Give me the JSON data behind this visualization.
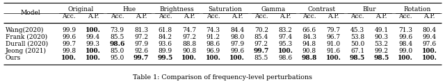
{
  "caption": "Table 1: Comparison of frequency-level perturbations",
  "header_groups": [
    "Model",
    "Original",
    "Hue",
    "Brightness",
    "Saturation",
    "Gamma",
    "Contrast",
    "Blur",
    "Rotation"
  ],
  "subheaders": [
    "Acc.",
    "A.P."
  ],
  "rows": [
    {
      "model": "Wang(2020)",
      "values": [
        "99.9",
        "100.",
        "73.9",
        "81.3",
        "61.8",
        "74.7",
        "74.3",
        "84.4",
        "70.2",
        "83.2",
        "66.6",
        "79.7",
        "45.3",
        "49.1",
        "71.3",
        "80.4"
      ],
      "bold": [
        false,
        true,
        false,
        false,
        false,
        false,
        false,
        false,
        false,
        false,
        false,
        false,
        false,
        false,
        false,
        false
      ]
    },
    {
      "model": "Frank (2020)",
      "values": [
        "99.6",
        "99.4",
        "85.5",
        "97.2",
        "84.2",
        "97.2",
        "91.2",
        "98.0",
        "85.4",
        "97.4",
        "84.3",
        "96.7",
        "53.8",
        "90.3",
        "99.6",
        "99.4"
      ],
      "bold": [
        false,
        false,
        false,
        false,
        false,
        false,
        false,
        false,
        false,
        false,
        false,
        false,
        false,
        false,
        false,
        false
      ]
    },
    {
      "model": "Durall (2020)",
      "values": [
        "99.7",
        "99.3",
        "98.6",
        "97.9",
        "93.6",
        "88.8",
        "98.6",
        "97.9",
        "97.2",
        "95.3",
        "94.8",
        "91.0",
        "50.0",
        "53.2",
        "98.4",
        "97.6"
      ],
      "bold": [
        false,
        false,
        true,
        false,
        false,
        false,
        false,
        false,
        false,
        false,
        false,
        false,
        false,
        false,
        false,
        false
      ]
    },
    {
      "model": "Jeong (2021)",
      "values": [
        "99.8",
        "100.",
        "85.0",
        "92.6",
        "89.9",
        "90.8",
        "96.9",
        "99.6",
        "99.7",
        "100.",
        "90.8",
        "91.6",
        "67.1",
        "99.2",
        "99.0",
        "100."
      ],
      "bold": [
        false,
        true,
        false,
        false,
        false,
        false,
        false,
        false,
        true,
        true,
        false,
        false,
        false,
        false,
        false,
        true
      ]
    },
    {
      "model": "Ours",
      "values": [
        "100.",
        "100.",
        "95.0",
        "99.7",
        "99.5",
        "100.",
        "100.",
        "100.",
        "85.5",
        "98.6",
        "98.8",
        "100.",
        "98.5",
        "98.5",
        "100.",
        "100."
      ],
      "bold": [
        true,
        true,
        false,
        true,
        true,
        true,
        true,
        true,
        false,
        false,
        true,
        true,
        true,
        true,
        true,
        true
      ]
    }
  ],
  "fig_width": 6.4,
  "fig_height": 1.21,
  "dpi": 100,
  "font_size": 6.5,
  "caption_font_size": 6.8,
  "bg_color": "#ffffff",
  "line_color": "#000000",
  "text_color": "#000000"
}
